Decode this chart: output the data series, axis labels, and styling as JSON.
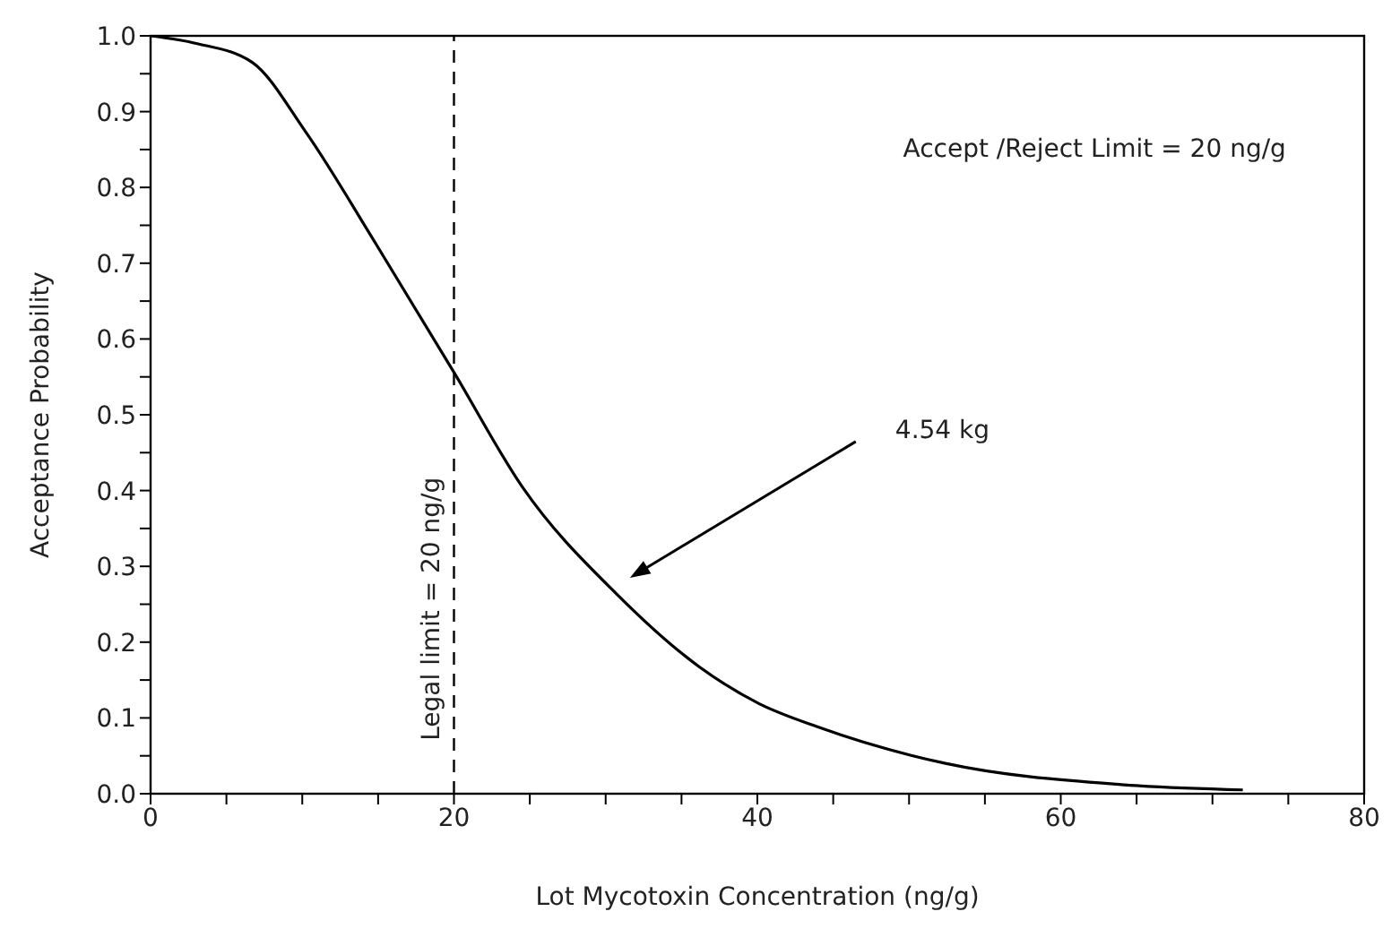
{
  "chart_data": {
    "type": "line",
    "xlabel": "Lot Mycotoxin Concentration (ng/g)",
    "ylabel": "Acceptance Probability",
    "x": [
      0,
      3,
      6.7,
      10.2,
      14.9,
      20,
      24.5,
      30.8,
      36.2,
      40.1,
      44,
      52.4,
      64,
      72
    ],
    "series": [
      {
        "color": "#000000",
        "values": [
          1.0,
          0.99,
          0.965,
          0.874,
          0.724,
          0.556,
          0.405,
          0.262,
          0.167,
          0.119,
          0.088,
          0.04,
          0.012,
          0.005
        ]
      }
    ],
    "xlim": [
      0,
      80
    ],
    "ylim": [
      0,
      1
    ],
    "xticks": [
      0,
      {
        "value": 5,
        "label": null
      },
      {
        "value": 10,
        "label": null
      },
      {
        "value": 15,
        "label": null
      },
      20,
      {
        "value": 25,
        "label": null
      },
      {
        "value": 30,
        "label": null
      },
      {
        "value": 35,
        "label": null
      },
      40,
      {
        "value": 45,
        "label": null
      },
      {
        "value": 50,
        "label": null
      },
      {
        "value": 55,
        "label": null
      },
      60,
      {
        "value": 65,
        "label": null
      },
      {
        "value": 70,
        "label": null
      },
      {
        "value": 75,
        "label": null
      },
      80
    ],
    "yticks": [
      {
        "value": 0,
        "label": "0.0"
      },
      {
        "value": 0.05,
        "label": null
      },
      {
        "value": 0.1,
        "label": "0.1"
      },
      {
        "value": 0.15,
        "label": null
      },
      {
        "value": 0.2,
        "label": "0.2"
      },
      {
        "value": 0.25,
        "label": null
      },
      {
        "value": 0.3,
        "label": "0.3"
      },
      {
        "value": 0.35,
        "label": null
      },
      {
        "value": 0.4,
        "label": "0.4"
      },
      {
        "value": 0.45,
        "label": null
      },
      {
        "value": 0.5,
        "label": "0.5"
      },
      {
        "value": 0.55,
        "label": null
      },
      {
        "value": 0.6,
        "label": "0.6"
      },
      {
        "value": 0.65,
        "label": null
      },
      {
        "value": 0.7,
        "label": "0.7"
      },
      {
        "value": 0.75,
        "label": null
      },
      {
        "value": 0.8,
        "label": "0.8"
      },
      {
        "value": 0.85,
        "label": null
      },
      {
        "value": 0.9,
        "label": "0.9"
      },
      {
        "value": 0.95,
        "label": null
      },
      {
        "value": 1.0,
        "label": "1.0"
      }
    ],
    "ref_lines": [
      {
        "axis": "x",
        "value": 20,
        "label": "Legal limit = 20 ng/g",
        "color": "#000000",
        "line_style": "dashed"
      }
    ],
    "annotations": [
      "Accept /Reject Limit = 20 ng/g",
      "4.54 kg"
    ],
    "grid": false,
    "legend": false,
    "marker": "none",
    "line_style": "solid"
  }
}
